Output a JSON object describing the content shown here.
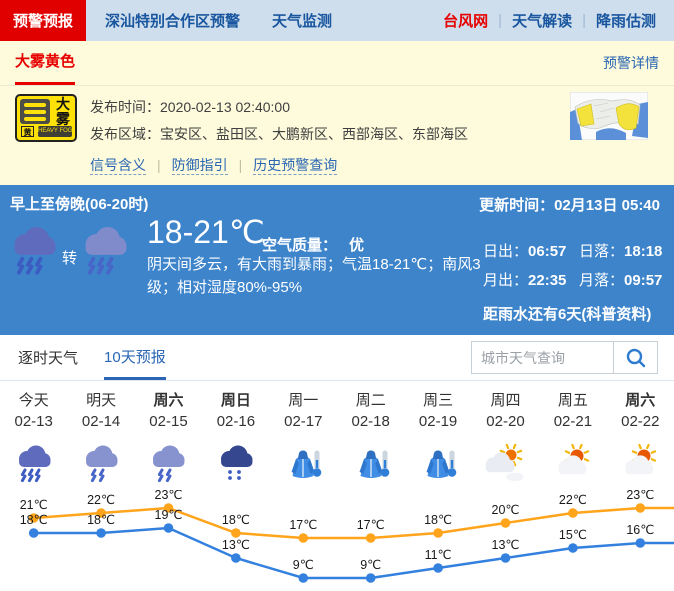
{
  "nav": {
    "tabs": [
      {
        "label": "预警预报",
        "active": true
      },
      {
        "label": "深汕特别合作区预警",
        "active": false
      },
      {
        "label": "天气监测",
        "active": false
      }
    ],
    "links": [
      {
        "label": "台风网",
        "color": "red"
      },
      {
        "label": "天气解读",
        "color": "blue"
      },
      {
        "label": "降雨估测",
        "color": "blue"
      }
    ]
  },
  "warning": {
    "title": "大雾黄色",
    "detail_link": "预警详情",
    "icon": {
      "name": "heavy-fog-yellow-warning",
      "char_cn": "大雾",
      "level": "黄",
      "label_en": "HEAVY FOG"
    },
    "publish_time_label": "发布时间：",
    "publish_time": "2020-02-13 02:40:00",
    "area_label": "发布区域：",
    "area": "宝安区、盐田区、大鹏新区、西部海区、东部海区",
    "links": [
      "信号含义",
      "防御指引",
      "历史预警查询"
    ]
  },
  "current": {
    "period": "早上至傍晚(06-20时)",
    "update_label": "更新时间：",
    "update_time": "02月13日 05:40",
    "weather_icons": [
      "storm-rain",
      "heavy-rain"
    ],
    "transition": "转",
    "temp_range": "18-21℃",
    "air_label": "空气质量：",
    "air_value": "优",
    "description": "阴天间多云，有大雨到暴雨；气温18-21℃；南风3级；相对湿度80%-95%",
    "sun_moon": [
      {
        "label": "日出：",
        "value": "06:57"
      },
      {
        "label": "日落：",
        "value": "18:18"
      },
      {
        "label": "月出：",
        "value": "22:35"
      },
      {
        "label": "月落：",
        "value": "09:57"
      }
    ],
    "countdown": "距雨水还有6天(科普资料)"
  },
  "forecast": {
    "tabs": [
      {
        "label": "逐时天气",
        "active": false
      },
      {
        "label": "10天预报",
        "active": true
      }
    ],
    "search_placeholder": "城市天气查询",
    "days": [
      {
        "name": "今天",
        "date": "02-13",
        "bold": false,
        "icon": "storm-rain"
      },
      {
        "name": "明天",
        "date": "02-14",
        "bold": false,
        "icon": "rain"
      },
      {
        "name": "周六",
        "date": "02-15",
        "bold": true,
        "icon": "rain"
      },
      {
        "name": "周日",
        "date": "02-16",
        "bold": true,
        "icon": "drizzle"
      },
      {
        "name": "周一",
        "date": "02-17",
        "bold": false,
        "icon": "cold"
      },
      {
        "name": "周二",
        "date": "02-18",
        "bold": false,
        "icon": "cold"
      },
      {
        "name": "周三",
        "date": "02-19",
        "bold": false,
        "icon": "cold"
      },
      {
        "name": "周四",
        "date": "02-20",
        "bold": false,
        "icon": "cloudy-sun"
      },
      {
        "name": "周五",
        "date": "02-21",
        "bold": false,
        "icon": "sun-cloud"
      },
      {
        "name": "周六",
        "date": "02-22",
        "bold": true,
        "icon": "sun-cloud"
      }
    ]
  },
  "chart_data": {
    "type": "line",
    "categories": [
      "02-13",
      "02-14",
      "02-15",
      "02-16",
      "02-17",
      "02-18",
      "02-19",
      "02-20",
      "02-21",
      "02-22"
    ],
    "series": [
      {
        "name": "最高气温",
        "color": "#ffa41b",
        "values": [
          21,
          22,
          23,
          18,
          17,
          17,
          18,
          20,
          22,
          23
        ]
      },
      {
        "name": "最低气温",
        "color": "#3380de",
        "values": [
          18,
          18,
          19,
          13,
          9,
          9,
          11,
          13,
          15,
          16
        ]
      }
    ],
    "unit": "℃",
    "ylim": [
      9,
      23
    ],
    "grid": false,
    "data_labels": true,
    "legend": "none"
  },
  "colors": {
    "accent_red": "#e10000",
    "link_blue": "#2a66b3",
    "banner_blue": "#3d84cb",
    "warning_bg_yellow": "#fdfbdb",
    "nav_bg": "#cfdeed",
    "high_line": "#ffa41b",
    "low_line": "#3380de"
  }
}
